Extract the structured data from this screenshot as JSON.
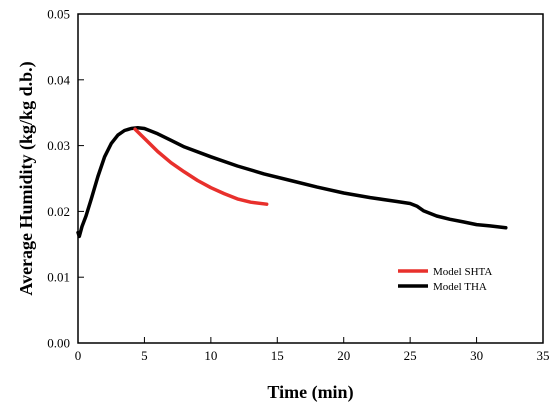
{
  "chart_data": {
    "type": "line",
    "xlabel": "Time (min)",
    "ylabel": "Average Humidity (kg/kg d.b.)",
    "xlim": [
      0,
      35
    ],
    "ylim": [
      0,
      0.05
    ],
    "xticks": [
      "0",
      "5",
      "10",
      "15",
      "20",
      "25",
      "30",
      "35"
    ],
    "yticks": [
      "0.00",
      "0.01",
      "0.02",
      "0.03",
      "0.04",
      "0.05"
    ],
    "grid": false,
    "legend_position": "bottom-right",
    "series": [
      {
        "name": "Model SHTA",
        "color": "#e8302c",
        "x": [
          4.3,
          5,
          6,
          7,
          8,
          9,
          10,
          11,
          12,
          13,
          14.2
        ],
        "y": [
          0.0325,
          0.0311,
          0.0291,
          0.0274,
          0.026,
          0.0247,
          0.0236,
          0.0227,
          0.0219,
          0.0214,
          0.0211
        ]
      },
      {
        "name": "Model THA",
        "color": "#000000",
        "x": [
          0,
          0.1,
          0.3,
          0.6,
          1,
          1.5,
          2,
          2.5,
          3,
          3.5,
          4,
          4.5,
          5,
          6,
          7,
          8,
          10,
          12,
          14,
          16,
          18,
          20,
          22,
          24,
          25,
          25.5,
          26,
          27,
          28,
          29,
          30,
          31,
          32.2
        ],
        "y": [
          0.0168,
          0.0162,
          0.0177,
          0.0193,
          0.0219,
          0.0253,
          0.0283,
          0.0303,
          0.0316,
          0.0323,
          0.0326,
          0.0327,
          0.0326,
          0.0318,
          0.0308,
          0.0298,
          0.0283,
          0.0269,
          0.0257,
          0.0247,
          0.0237,
          0.0228,
          0.0221,
          0.0215,
          0.0212,
          0.0208,
          0.0201,
          0.0193,
          0.0188,
          0.0184,
          0.018,
          0.0178,
          0.0175
        ]
      }
    ]
  }
}
